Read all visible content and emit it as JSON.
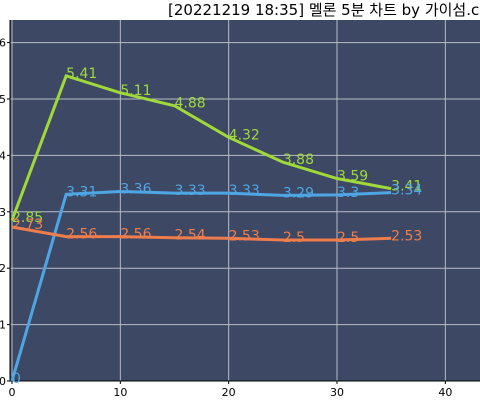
{
  "chart_data": {
    "type": "line",
    "title": "[20221219 18:35] 멜론 5분 차트 by 가이섬.c",
    "x": [
      0,
      5,
      10,
      15,
      20,
      25,
      30,
      35
    ],
    "series": [
      {
        "color": "#9fd93a",
        "values": [
          2.85,
          5.41,
          5.11,
          4.88,
          4.32,
          3.88,
          3.59,
          3.41
        ]
      },
      {
        "color": "#4ea6e4",
        "values": [
          0,
          3.31,
          3.36,
          3.33,
          3.33,
          3.29,
          3.3,
          3.34
        ]
      },
      {
        "color": "#ee7d4c",
        "values": [
          2.73,
          2.56,
          2.56,
          2.54,
          2.53,
          2.5,
          2.5,
          2.53
        ]
      }
    ],
    "xlim": [
      0,
      43.2
    ],
    "ylim": [
      0,
      6.4
    ],
    "xticks": [
      0,
      10,
      20,
      30,
      40
    ],
    "yticks": [
      0,
      1,
      2,
      3,
      4,
      5,
      6
    ],
    "grid": true
  }
}
